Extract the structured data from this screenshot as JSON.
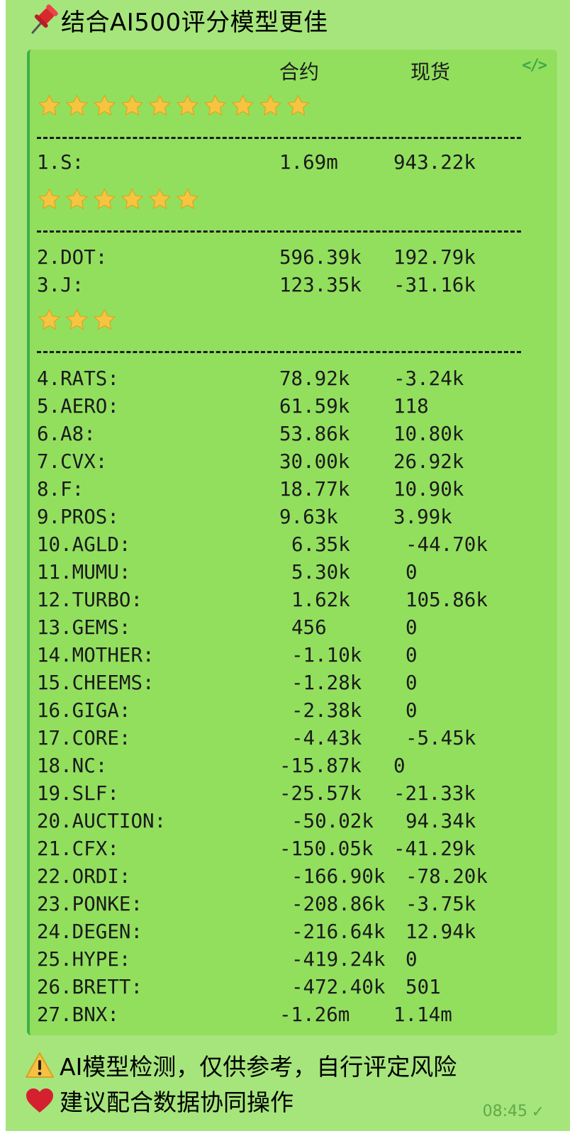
{
  "message": {
    "title": "结合AI500评分模型更佳",
    "header": {
      "col1": "合约",
      "col2": "现货"
    },
    "tiers": [
      {
        "stars": 10,
        "rows": [
          {
            "name": "1.S:",
            "futures": "1.69m",
            "spot": "943.22k"
          }
        ]
      },
      {
        "stars": 6,
        "rows": [
          {
            "name": "2.DOT:",
            "futures": "596.39k",
            "spot": "192.79k"
          },
          {
            "name": "3.J:",
            "futures": "123.35k",
            "spot": "-31.16k"
          }
        ]
      },
      {
        "stars": 3,
        "rows": [
          {
            "name": "4.RATS:",
            "futures": "78.92k",
            "spot": "-3.24k"
          },
          {
            "name": "5.AERO:",
            "futures": "61.59k",
            "spot": "118"
          },
          {
            "name": "6.A8:",
            "futures": "53.86k",
            "spot": "10.80k"
          },
          {
            "name": "7.CVX:",
            "futures": "30.00k",
            "spot": "26.92k"
          },
          {
            "name": "8.F:",
            "futures": "18.77k",
            "spot": "10.90k"
          },
          {
            "name": "9.PROS:",
            "futures": "9.63k",
            "spot": "3.99k"
          },
          {
            "name": "10.AGLD:",
            "futures": "6.35k",
            "spot": "-44.70k"
          },
          {
            "name": "11.MUMU:",
            "futures": "5.30k",
            "spot": "0"
          },
          {
            "name": "12.TURBO:",
            "futures": "1.62k",
            "spot": "105.86k"
          },
          {
            "name": "13.GEMS:",
            "futures": "456",
            "spot": "0"
          },
          {
            "name": "14.MOTHER:",
            "futures": "-1.10k",
            "spot": "0"
          },
          {
            "name": "15.CHEEMS:",
            "futures": "-1.28k",
            "spot": "0"
          },
          {
            "name": "16.GIGA:",
            "futures": "-2.38k",
            "spot": "0"
          },
          {
            "name": "17.CORE:",
            "futures": "-4.43k",
            "spot": "-5.45k"
          },
          {
            "name": "18.NC:",
            "futures": "-15.87k",
            "spot": "0"
          },
          {
            "name": "19.SLF:",
            "futures": "-25.57k",
            "spot": "-21.33k"
          },
          {
            "name": "20.AUCTION:",
            "futures": "-50.02k",
            "spot": "94.34k"
          },
          {
            "name": "21.CFX:",
            "futures": "-150.05k",
            "spot": "-41.29k"
          },
          {
            "name": "22.ORDI:",
            "futures": "-166.90k",
            "spot": "-78.20k"
          },
          {
            "name": "23.PONKE:",
            "futures": "-208.86k",
            "spot": "-3.75k"
          },
          {
            "name": "24.DEGEN:",
            "futures": "-216.64k",
            "spot": "12.94k"
          },
          {
            "name": "25.HYPE:",
            "futures": "-419.24k",
            "spot": "0"
          },
          {
            "name": "26.BRETT:",
            "futures": "-472.40k",
            "spot": "501"
          },
          {
            "name": "27.BNX:",
            "futures": "-1.26m",
            "spot": "1.14m"
          }
        ]
      }
    ],
    "separator": "--------------------------------------",
    "footer_lines": [
      {
        "icon": "warning-icon",
        "text": "AI模型检测，仅供参考，自行评定风险"
      },
      {
        "icon": "heart-icon",
        "text": "建议配合数据协同操作"
      }
    ],
    "time": "08:45",
    "code_icon": "</>"
  },
  "colors": {
    "bubble": "#a6e57c",
    "code_bg": "#92df5e",
    "code_bar": "#3fb04a",
    "star": "#f5c542"
  }
}
